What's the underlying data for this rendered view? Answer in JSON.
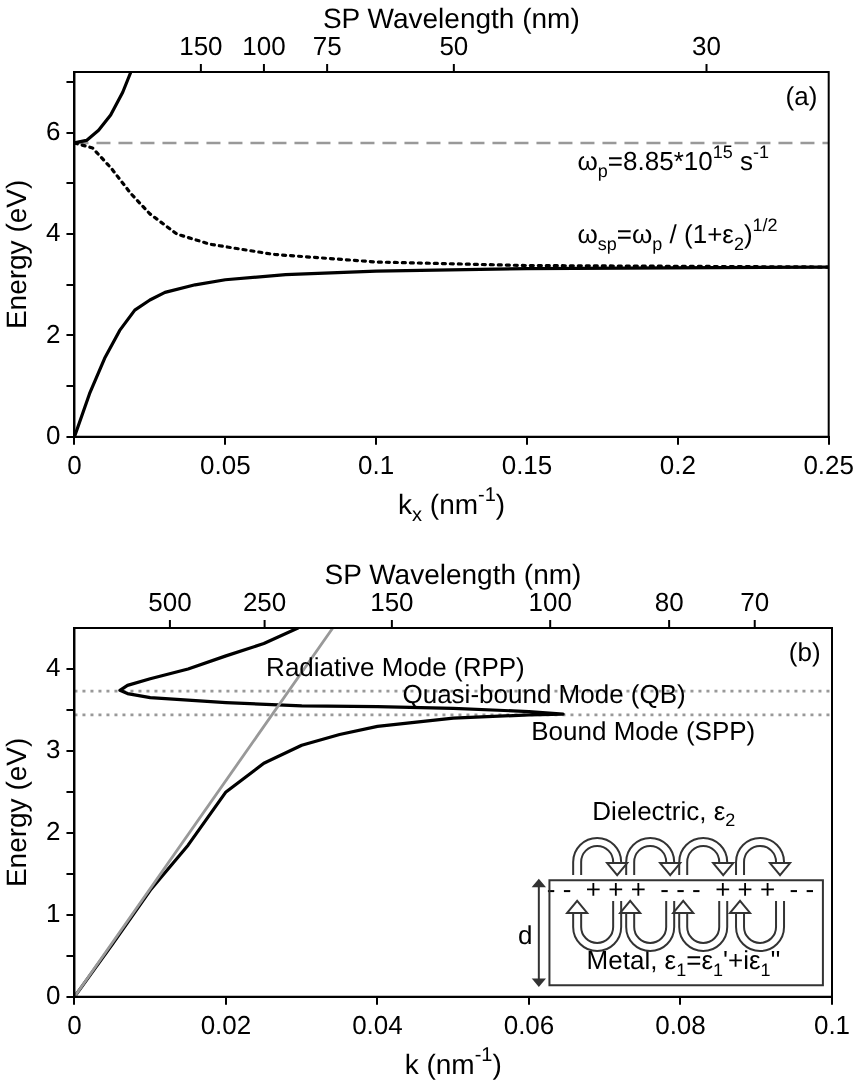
{
  "chart_data": [
    {
      "type": "line",
      "xlabel": "k$_{x}$ (nm$^{-1}$)",
      "ylabel": "Energy (eV)",
      "marker": "none",
      "xlim": [
        0,
        0.25
      ],
      "xticks": [
        0,
        0.05,
        0.1,
        0.15,
        0.2,
        0.25
      ],
      "ylim": [
        0,
        7.2
      ],
      "yticks": [
        0,
        {
          "value": 1,
          "label": null
        },
        2,
        {
          "value": 3,
          "label": null
        },
        4,
        {
          "value": 5,
          "label": null
        },
        6,
        {
          "value": 7,
          "label": null
        }
      ],
      "series": [
        {
          "color": "#000000",
          "line_style": "solid",
          "x": [
            0,
            0.004,
            0.008,
            0.012,
            0.016,
            0.0187
          ],
          "values": [
            5.8,
            5.85,
            6.05,
            6.35,
            6.8,
            7.2
          ]
        },
        {
          "color": "#000000",
          "line_style": "solid",
          "x": [
            0,
            0.005,
            0.01,
            0.015,
            0.02,
            0.025,
            0.03,
            0.04,
            0.05,
            0.07,
            0.1,
            0.15,
            0.25
          ],
          "values": [
            0,
            0.85,
            1.55,
            2.1,
            2.5,
            2.7,
            2.85,
            3.0,
            3.1,
            3.2,
            3.27,
            3.32,
            3.35
          ]
        },
        {
          "color": "#000000",
          "line_style": "dotted",
          "x": [
            0,
            0.006,
            0.0122,
            0.0187,
            0.025,
            0.034,
            0.045,
            0.066,
            0.1,
            0.15,
            0.25
          ],
          "values": [
            5.8,
            5.7,
            5.3,
            4.8,
            4.4,
            4.0,
            3.8,
            3.6,
            3.45,
            3.38,
            3.35
          ]
        }
      ],
      "ref_lines": [
        {
          "axis": "y",
          "value": 5.8,
          "color": "#999999",
          "line_style": "dashed"
        }
      ],
      "annotations": [
        "SP Wavelength (nm)",
        "150",
        "100",
        "75",
        "50",
        "30",
        "(a)",
        "ω$_{p}$=8.85*10$^{15}$ s$^{-1}$",
        "ω$_{sp}$=ω$_{p}$ / (1+ε$_{2}$)$^{1/2}$"
      ]
    },
    {
      "type": "line",
      "xlabel": "k (nm$^{-1}$)",
      "ylabel": "Energy (eV)",
      "marker": "none",
      "xlim": [
        0,
        0.1
      ],
      "xticks": [
        0,
        0.02,
        0.04,
        0.06,
        0.08,
        0.1
      ],
      "ylim": [
        0,
        4.5
      ],
      "yticks": [
        0,
        {
          "value": 0.5,
          "label": null
        },
        1,
        {
          "value": 1.5,
          "label": null
        },
        2,
        {
          "value": 2.5,
          "label": null
        },
        3,
        {
          "value": 3.5,
          "label": null
        },
        4
      ],
      "series": [
        {
          "color": "#999999",
          "line_style": "solid",
          "x": [
            0,
            0.0341
          ],
          "values": [
            0,
            4.5
          ]
        },
        {
          "color": "#000000",
          "line_style": "solid",
          "x": [
            0,
            0.005,
            0.01,
            0.015,
            0.02,
            0.025,
            0.03,
            0.035,
            0.04,
            0.05,
            0.06,
            0.0645,
            0.06,
            0.05,
            0.04,
            0.03,
            0.02,
            0.01,
            0.007,
            0.006,
            0.007,
            0.01,
            0.015,
            0.02,
            0.025,
            0.0295
          ],
          "values": [
            0,
            0.64,
            1.3,
            1.85,
            2.5,
            2.85,
            3.07,
            3.2,
            3.3,
            3.4,
            3.44,
            3.45,
            3.48,
            3.52,
            3.54,
            3.55,
            3.59,
            3.65,
            3.7,
            3.74,
            3.8,
            3.88,
            4.0,
            4.16,
            4.31,
            4.5
          ]
        }
      ],
      "ref_lines": [
        {
          "axis": "y",
          "value": 3.73,
          "color": "#999999",
          "line_style": "dotted"
        },
        {
          "axis": "y",
          "value": 3.44,
          "color": "#999999",
          "line_style": "dotted"
        }
      ],
      "annotations": [
        "SP Wavelength (nm)",
        "500",
        "250",
        "150",
        "100",
        "80",
        "70",
        "(b)",
        "Radiative Mode (RPP)",
        "Quasi-bound Mode (QB)",
        "Bound Mode (SPP)",
        "Dielectric, ε$_{2}$",
        "- -  + + +  - - -  + + +  - -",
        "d",
        "Metal, ε$_{1}$=ε$_{1}$'+iε$_{1}$''"
      ]
    }
  ]
}
